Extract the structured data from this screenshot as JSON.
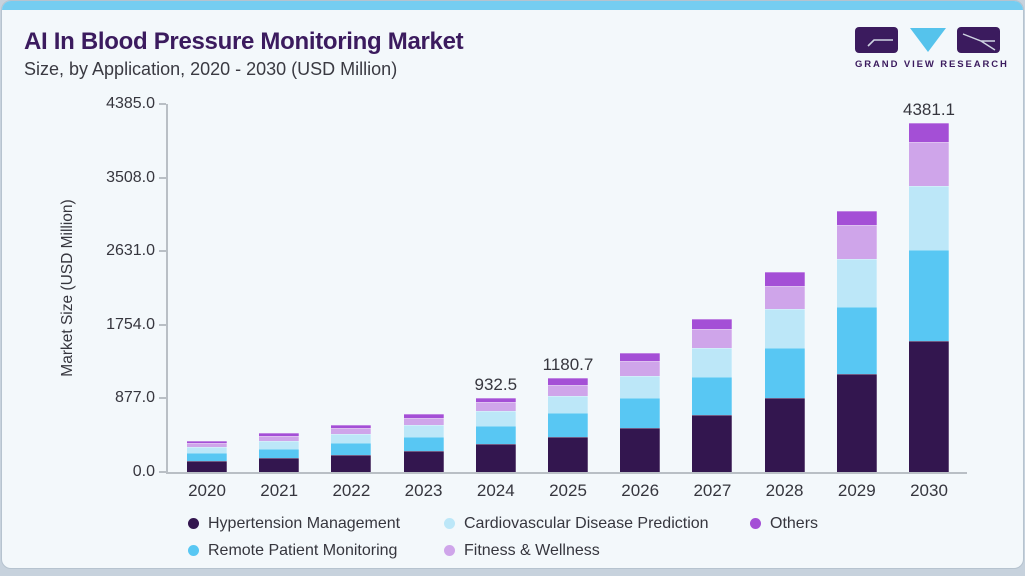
{
  "header": {
    "title": "AI In Blood Pressure Monitoring Market",
    "subtitle": "Size, by Application, 2020 - 2030 (USD Million)",
    "logo_text": "GRAND VIEW RESEARCH"
  },
  "colors": {
    "accent_strip": "#75cdf1",
    "title": "#3b1b5e",
    "axis": "#b9bfc5",
    "text": "#36363e"
  },
  "chart_data": {
    "type": "bar",
    "stacked": true,
    "title": "AI In Blood Pressure Monitoring Market Size, by Application, 2020 - 2030 (USD Million)",
    "xlabel": "",
    "ylabel": "Market Size (USD Million)",
    "categories": [
      "2020",
      "2021",
      "2022",
      "2023",
      "2024",
      "2025",
      "2026",
      "2027",
      "2028",
      "2029",
      "2030"
    ],
    "series": [
      {
        "name": "Hypertension Management",
        "color": "#33164f",
        "values": [
          140,
          172,
          212,
          262,
          350.0,
          440.0,
          555,
          710,
          925,
          1230,
          1645.0
        ]
      },
      {
        "name": "Remote Patient Monitoring",
        "color": "#58c7f3",
        "values": [
          100,
          122,
          150,
          183,
          225.0,
          300.0,
          380,
          480,
          630,
          840,
          1140.0
        ]
      },
      {
        "name": "Cardiovascular Disease Prediction",
        "color": "#bce7f8",
        "values": [
          75,
          93,
          114,
          140,
          185.0,
          213.0,
          270,
          365,
          490,
          600,
          810.0
        ]
      },
      {
        "name": "Fitness & Wellness",
        "color": "#cfa5ea",
        "values": [
          53,
          65,
          80,
          99,
          123.0,
          145.0,
          185,
          240,
          290,
          430,
          550.0
        ]
      },
      {
        "name": "Others",
        "color": "#a44fd6",
        "values": [
          27,
          33,
          40,
          49,
          49.5,
          82.7,
          110,
          127,
          170,
          176,
          236.1
        ]
      }
    ],
    "totals": [
      395,
      485,
      596,
      733,
      932.5,
      1180.7,
      1500,
      1922,
      2505,
      3276,
      4381.1
    ],
    "bar_labels": [
      {
        "category": "2024",
        "text": "932.5"
      },
      {
        "category": "2025",
        "text": "1180.7"
      },
      {
        "category": "2030",
        "text": "4381.1"
      }
    ],
    "y_ticks": [
      "0.0",
      "877.0",
      "1754.0",
      "2631.0",
      "3508.0",
      "4385.0"
    ],
    "ylim": [
      0,
      4385
    ],
    "grid": false,
    "legend_position": "bottom"
  },
  "legend": {
    "items": [
      {
        "label": "Hypertension Management",
        "color": "#33164f"
      },
      {
        "label": "Remote Patient Monitoring",
        "color": "#58c7f3"
      },
      {
        "label": "Cardiovascular Disease Prediction",
        "color": "#bce7f8"
      },
      {
        "label": "Fitness & Wellness",
        "color": "#cfa5ea"
      },
      {
        "label": "Others",
        "color": "#a44fd6"
      }
    ]
  }
}
